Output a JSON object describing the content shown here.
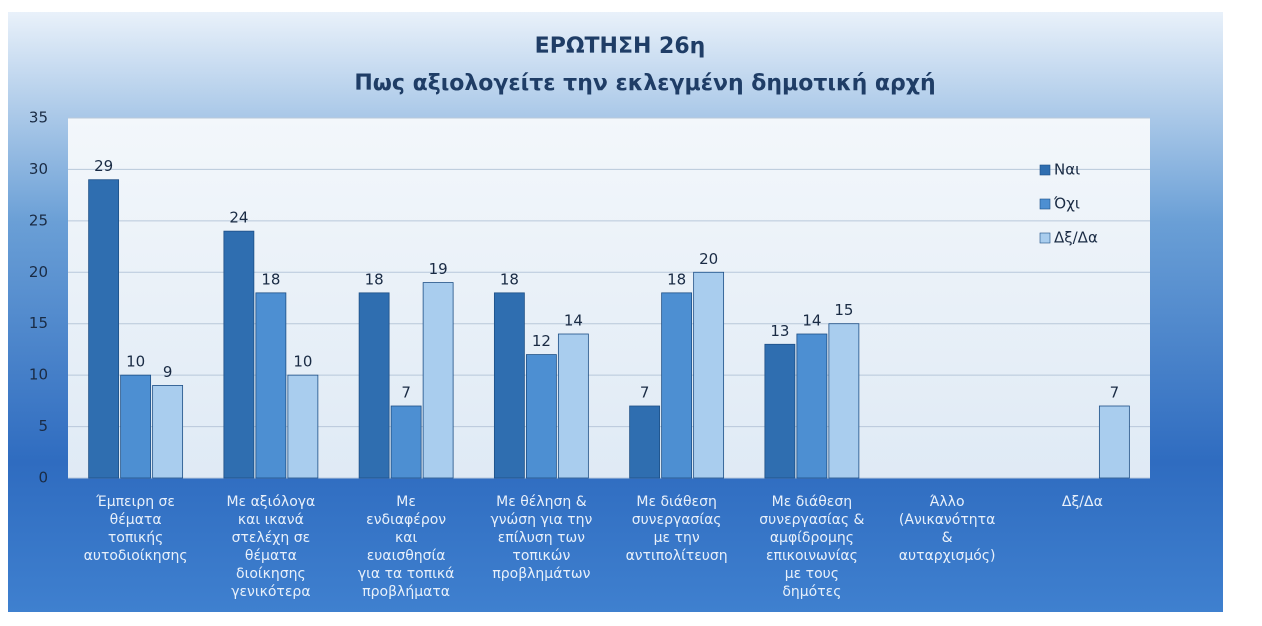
{
  "chart_data": {
    "type": "bar",
    "title": [
      "ΕΡΩΤΗΣΗ 26η",
      "Πως αξιολογείτε την εκλεγμένη δημοτική αρχή"
    ],
    "categories": [
      [
        "Έμπειρη σε",
        "θέματα",
        "τοπικής",
        "αυτοδιοίκησης"
      ],
      [
        "Με αξιόλογα",
        "και ικανά",
        "στελέχη σε",
        "θέματα",
        "διοίκησης",
        "γενικότερα"
      ],
      [
        "Με",
        "ενδιαφέρον",
        "και",
        "ευαισθησία",
        "για τα τοπικά",
        "προβλήματα"
      ],
      [
        "Με θέληση &",
        "γνώση για την",
        "επίλυση των",
        "τοπικών",
        "προβλημάτων"
      ],
      [
        "Με διάθεση",
        "συνεργασίας",
        "με την",
        "αντιπολίτευση"
      ],
      [
        "Με διάθεση",
        "συνεργασίας &",
        "αμφίδρομης",
        "επικοινωνίας",
        "με τους",
        "δημότες"
      ],
      [
        "Άλλο",
        "(Ανικανότητα",
        "&",
        "αυταρχισμός)"
      ],
      [
        "Δξ/Δα"
      ]
    ],
    "series": [
      {
        "name": "Ναι",
        "color": "#2f6eb0",
        "values": [
          29,
          24,
          18,
          18,
          7,
          13,
          null,
          null
        ]
      },
      {
        "name": "Όχι",
        "color": "#4d8fd2",
        "values": [
          10,
          18,
          7,
          12,
          18,
          14,
          null,
          null
        ]
      },
      {
        "name": "Δξ/Δα",
        "color": "#a9cdee",
        "values": [
          9,
          10,
          19,
          14,
          20,
          15,
          null,
          7
        ]
      }
    ],
    "ylim": [
      0,
      35
    ],
    "yticks": [
      0,
      5,
      10,
      15,
      20,
      25,
      30,
      35
    ],
    "grid": true,
    "legend": "right"
  }
}
